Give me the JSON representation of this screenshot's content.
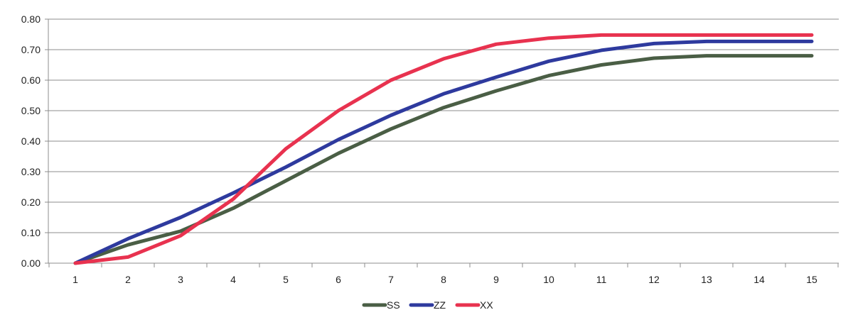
{
  "chart_data": {
    "type": "line",
    "x": [
      1,
      2,
      3,
      4,
      5,
      6,
      7,
      8,
      9,
      10,
      11,
      12,
      13,
      14,
      15
    ],
    "ylim": [
      0,
      0.8
    ],
    "yticks": [
      "0.00",
      "0.10",
      "0.20",
      "0.30",
      "0.40",
      "0.50",
      "0.60",
      "0.70",
      "0.80"
    ],
    "xticks": [
      "1",
      "2",
      "3",
      "4",
      "5",
      "6",
      "7",
      "8",
      "9",
      "10",
      "11",
      "12",
      "13",
      "14",
      "15"
    ],
    "grid": true,
    "legend_position": "bottom",
    "series": [
      {
        "name": "SS",
        "color": "#4a5e45",
        "values": [
          0.0,
          0.06,
          0.105,
          0.18,
          0.27,
          0.36,
          0.44,
          0.51,
          0.565,
          0.615,
          0.65,
          0.672,
          0.68,
          0.68,
          0.68
        ]
      },
      {
        "name": "ZZ",
        "color": "#2e3a9e",
        "values": [
          0.0,
          0.08,
          0.15,
          0.23,
          0.315,
          0.405,
          0.485,
          0.555,
          0.61,
          0.662,
          0.698,
          0.72,
          0.727,
          0.727,
          0.727
        ]
      },
      {
        "name": "XX",
        "color": "#e8324f",
        "values": [
          0.0,
          0.02,
          0.09,
          0.21,
          0.375,
          0.5,
          0.6,
          0.67,
          0.718,
          0.738,
          0.748,
          0.748,
          0.748,
          0.748,
          0.748
        ]
      }
    ]
  }
}
